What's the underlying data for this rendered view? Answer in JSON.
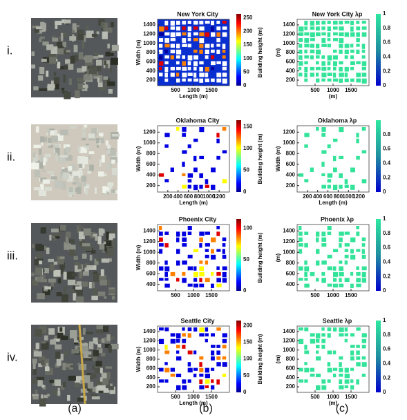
{
  "column_labels": [
    "(a)",
    "(b)",
    "(c)"
  ],
  "rows": [
    {
      "label": "i.",
      "map": {
        "title": "New York City",
        "xlabel": "Length (m)",
        "ylabel": "Width (m)",
        "xticks": [
          500,
          1000,
          1500
        ],
        "yticks": [
          200,
          400,
          600,
          800,
          1000,
          1200,
          1400
        ],
        "colorbar_label": "Building height (m)",
        "colorbar_ticks": [
          0,
          50,
          100,
          150,
          200,
          250
        ]
      },
      "lambda": {
        "title": "New York City λp",
        "xlabel": "(m)",
        "ylabel": "(m)",
        "xticks": [
          500,
          1000,
          1500
        ],
        "yticks": [
          200,
          400,
          600,
          800,
          1000,
          1200,
          1400
        ],
        "colorbar_ticks": [
          0,
          0.2,
          0.4,
          0.6,
          0.8,
          1
        ]
      }
    },
    {
      "label": "ii.",
      "map": {
        "title": "Oklahoma City",
        "xlabel": "Length (m)",
        "ylabel": "Width (m)",
        "xticks": [
          200,
          400,
          600,
          800,
          1000,
          1200
        ],
        "yticks": [
          200,
          400,
          600,
          800,
          1000,
          1200
        ],
        "colorbar_label": "Building height (m)",
        "colorbar_ticks": [
          0,
          50,
          100,
          150
        ]
      },
      "lambda": {
        "title": "Oklahoma λp",
        "xlabel": "Length (m)",
        "ylabel": "Width (m)",
        "xticks": [
          200,
          400,
          600,
          800,
          1000,
          1200
        ],
        "yticks": [
          200,
          400,
          600,
          800,
          1000,
          1200
        ],
        "colorbar_ticks": [
          0,
          0.2,
          0.4,
          0.6,
          0.8
        ]
      }
    },
    {
      "label": "iii.",
      "map": {
        "title": "Phoenix City",
        "ylabel": "Width (m)",
        "xticks": [
          500,
          1000,
          1500
        ],
        "yticks": [
          400,
          600,
          800,
          1000,
          1200,
          1400
        ],
        "colorbar_label": "Building height (m)",
        "colorbar_ticks": [
          0,
          50,
          100
        ]
      },
      "lambda": {
        "title": "Phoenix λp",
        "ylabel": "(m)",
        "xticks": [
          500,
          1000,
          1500
        ],
        "yticks": [
          400,
          600,
          800,
          1000,
          1200,
          1400
        ],
        "colorbar_ticks": [
          0,
          0.2,
          0.4,
          0.6,
          0.8,
          1
        ]
      }
    },
    {
      "label": "iv.",
      "map": {
        "title": "Seattle City",
        "xlabel": "Length (m)",
        "ylabel": "Width (m)",
        "xticks": [
          500,
          1000,
          1500
        ],
        "yticks": [
          200,
          400,
          600,
          800,
          1000,
          1200,
          1400
        ],
        "colorbar_label": "Building height (m)",
        "colorbar_ticks": [
          0,
          50,
          100,
          150,
          200
        ]
      },
      "lambda": {
        "title": "Seattle λp",
        "xlabel": "(m)",
        "ylabel": "(m)",
        "xticks": [
          500,
          1000,
          1500
        ],
        "yticks": [
          200,
          400,
          600,
          800,
          1000,
          1200,
          1400
        ],
        "colorbar_ticks": [
          0,
          0.2,
          0.4,
          0.6,
          0.8,
          1
        ]
      }
    }
  ]
}
